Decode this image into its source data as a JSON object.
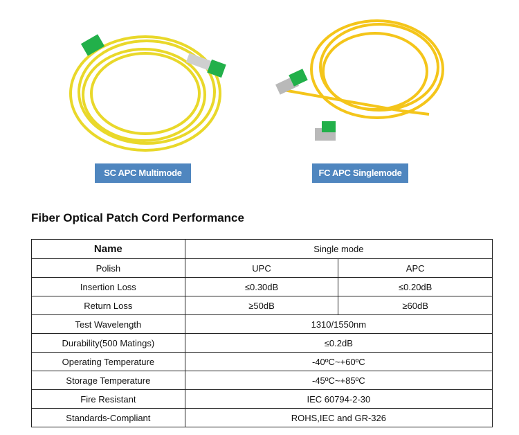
{
  "products": [
    {
      "caption": "SC APC Multimode"
    },
    {
      "caption": "FC APC Singlemode"
    }
  ],
  "table": {
    "title": "Fiber Optical Patch Cord Performance",
    "header": {
      "name": "Name",
      "value": "Single mode"
    },
    "polish": {
      "label": "Polish",
      "upc": "UPC",
      "apc": "APC"
    },
    "insertion_loss": {
      "label": "Insertion Loss",
      "upc": "≤0.30dB",
      "apc": "≤0.20dB"
    },
    "return_loss": {
      "label": "Return Loss",
      "upc": "≥50dB",
      "apc": "≥60dB"
    },
    "rows": [
      {
        "label": "Test Wavelength",
        "value": "1310/1550nm"
      },
      {
        "label": "Durability(500 Matings)",
        "value": "≤0.2dB"
      },
      {
        "label": "Operating Temperature",
        "value": "-40ºC~+60ºC"
      },
      {
        "label": "Storage Temperature",
        "value": "-45ºC~+85ºC"
      },
      {
        "label": "Fire Resistant",
        "value": "IEC 60794-2-30"
      },
      {
        "label": "Standards-Compliant",
        "value": "ROHS,IEC and GR-326"
      }
    ]
  },
  "colors": {
    "caption_bg": "#4f86bf",
    "cable": "#f2d21a",
    "connector": "#22b04a"
  }
}
